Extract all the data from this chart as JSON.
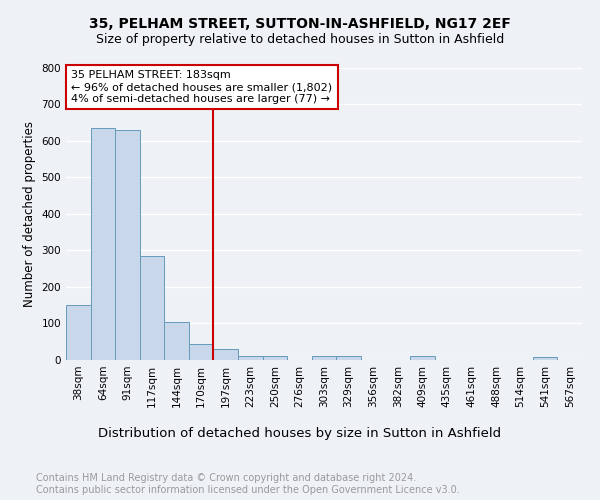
{
  "title": "35, PELHAM STREET, SUTTON-IN-ASHFIELD, NG17 2EF",
  "subtitle": "Size of property relative to detached houses in Sutton in Ashfield",
  "xlabel": "Distribution of detached houses by size in Sutton in Ashfield",
  "ylabel": "Number of detached properties",
  "categories": [
    "38sqm",
    "64sqm",
    "91sqm",
    "117sqm",
    "144sqm",
    "170sqm",
    "197sqm",
    "223sqm",
    "250sqm",
    "276sqm",
    "303sqm",
    "329sqm",
    "356sqm",
    "382sqm",
    "409sqm",
    "435sqm",
    "461sqm",
    "488sqm",
    "514sqm",
    "541sqm",
    "567sqm"
  ],
  "values": [
    150,
    635,
    628,
    285,
    105,
    45,
    30,
    12,
    12,
    0,
    10,
    10,
    0,
    0,
    10,
    0,
    0,
    0,
    0,
    8,
    0
  ],
  "bar_color": "#c8d8ea",
  "bar_edge_color": "#6699bb",
  "vline_x": 6.0,
  "vline_color": "#cc0000",
  "annotation_text": "35 PELHAM STREET: 183sqm\n← 96% of detached houses are smaller (1,802)\n4% of semi-detached houses are larger (77) →",
  "annotation_box_color": "#ffffff",
  "annotation_box_edge": "#cc0000",
  "ylim": [
    0,
    800
  ],
  "yticks": [
    0,
    100,
    200,
    300,
    400,
    500,
    600,
    700,
    800
  ],
  "footer": "Contains HM Land Registry data © Crown copyright and database right 2024.\nContains public sector information licensed under the Open Government Licence v3.0.",
  "bg_color": "#eef2f6",
  "grid_color": "#ffffff",
  "title_fontsize": 10,
  "subtitle_fontsize": 9,
  "xlabel_fontsize": 9.5,
  "ylabel_fontsize": 8.5,
  "tick_fontsize": 7.5,
  "annotation_fontsize": 8,
  "footer_fontsize": 7
}
